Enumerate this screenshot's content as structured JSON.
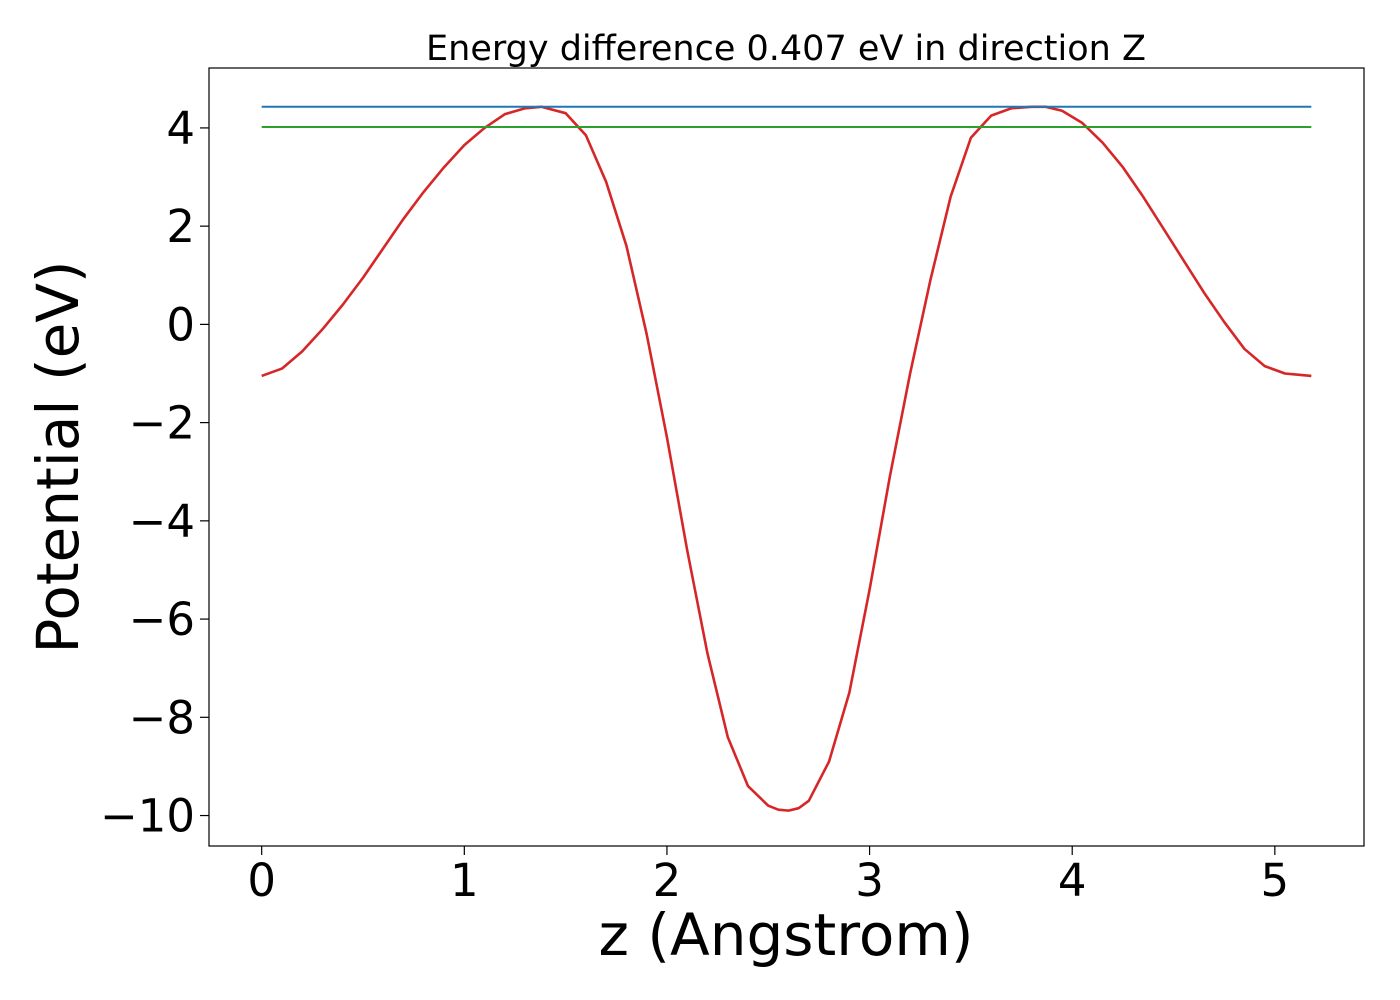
{
  "chart_data": {
    "type": "line",
    "title": "Energy difference 0.407 eV in direction Z",
    "xlabel": "z (Angstrom)",
    "ylabel": "Potential (eV)",
    "xlim": [
      -0.26,
      5.44
    ],
    "ylim": [
      -10.62,
      5.22
    ],
    "xticks": [
      0,
      1,
      2,
      3,
      4,
      5
    ],
    "xtick_labels": [
      "0",
      "1",
      "2",
      "3",
      "4",
      "5"
    ],
    "yticks": [
      4,
      2,
      0,
      -2,
      -4,
      -6,
      -8,
      -10
    ],
    "ytick_labels": [
      "4",
      "2",
      "0",
      "−2",
      "−4",
      "−6",
      "−8",
      "−10"
    ],
    "grid": false,
    "series": [
      {
        "color": "#d62728",
        "x": [
          0.0,
          0.1,
          0.2,
          0.3,
          0.4,
          0.5,
          0.6,
          0.7,
          0.8,
          0.9,
          1.0,
          1.1,
          1.2,
          1.3,
          1.38,
          1.5,
          1.6,
          1.7,
          1.8,
          1.9,
          2.0,
          2.1,
          2.2,
          2.3,
          2.4,
          2.5,
          2.55,
          2.6,
          2.65,
          2.7,
          2.8,
          2.9,
          3.0,
          3.1,
          3.2,
          3.3,
          3.4,
          3.5,
          3.6,
          3.7,
          3.8,
          3.87,
          3.95,
          4.05,
          4.15,
          4.25,
          4.35,
          4.45,
          4.55,
          4.65,
          4.75,
          4.85,
          4.95,
          5.05,
          5.1,
          5.18
        ],
        "y": [
          -1.05,
          -0.9,
          -0.55,
          -0.1,
          0.4,
          0.95,
          1.55,
          2.15,
          2.7,
          3.2,
          3.65,
          4.0,
          4.28,
          4.4,
          4.43,
          4.3,
          3.85,
          2.9,
          1.6,
          -0.2,
          -2.3,
          -4.6,
          -6.7,
          -8.4,
          -9.4,
          -9.8,
          -9.88,
          -9.9,
          -9.85,
          -9.7,
          -8.9,
          -7.5,
          -5.4,
          -3.1,
          -1.0,
          0.9,
          2.6,
          3.8,
          4.25,
          4.4,
          4.43,
          4.43,
          4.35,
          4.1,
          3.7,
          3.2,
          2.6,
          1.95,
          1.3,
          0.65,
          0.05,
          -0.5,
          -0.85,
          -1.0,
          -1.02,
          -1.05
        ]
      },
      {
        "color": "#1f77b4",
        "x": [
          0.0,
          5.18
        ],
        "y": [
          4.43,
          4.43
        ]
      },
      {
        "color": "#2ca02c",
        "x": [
          0.0,
          5.18
        ],
        "y": [
          4.02,
          4.02
        ]
      }
    ]
  }
}
